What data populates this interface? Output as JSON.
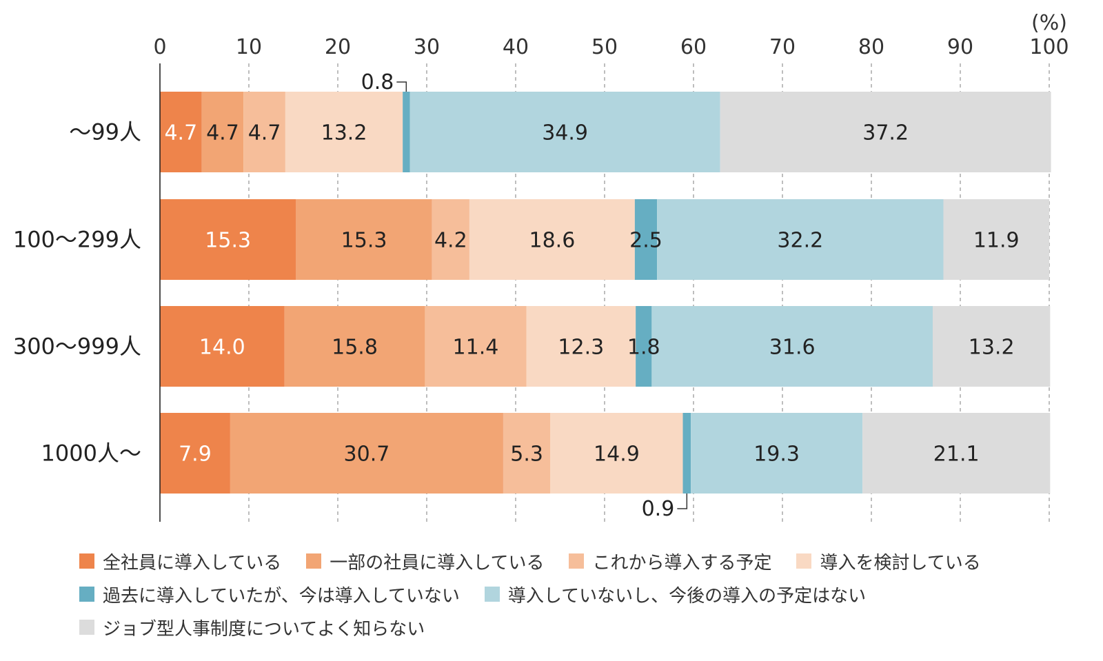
{
  "chart_data": {
    "type": "bar",
    "orientation": "horizontal",
    "stacked": true,
    "unit_label": "(%)",
    "xlim": [
      0,
      100
    ],
    "xticks": [
      "0",
      "10",
      "20",
      "30",
      "40",
      "50",
      "60",
      "70",
      "80",
      "90",
      "100"
    ],
    "grid": true,
    "legend_position": "bottom",
    "categories": [
      "〜99人",
      "100〜299人",
      "300〜999人",
      "1000人〜"
    ],
    "series": [
      {
        "name": "全社員に導入している",
        "color": "#ee844b",
        "label_color": "#ffffff",
        "values": [
          4.7,
          15.3,
          14.0,
          7.9
        ]
      },
      {
        "name": "一部の社員に導入している",
        "color": "#f2a574",
        "label_color": "#222222",
        "values": [
          4.7,
          15.3,
          15.8,
          30.7
        ]
      },
      {
        "name": "これから導入する予定",
        "color": "#f6be9a",
        "label_color": "#222222",
        "values": [
          4.7,
          4.2,
          11.4,
          5.3
        ]
      },
      {
        "name": "導入を検討している",
        "color": "#f9d9c3",
        "label_color": "#222222",
        "values": [
          13.2,
          18.6,
          12.3,
          14.9
        ]
      },
      {
        "name": "過去に導入していたが、今は導入していない",
        "color": "#66aec2",
        "label_color": "#222222",
        "values": [
          0.8,
          2.5,
          1.8,
          0.9
        ]
      },
      {
        "name": "導入していないし、今後の導入の予定はない",
        "color": "#b1d5de",
        "label_color": "#222222",
        "values": [
          34.9,
          32.2,
          31.6,
          19.3
        ]
      },
      {
        "name": "ジョブ型人事制度についてよく知らない",
        "color": "#dcdcdc",
        "label_color": "#222222",
        "values": [
          37.2,
          11.9,
          13.2,
          21.1
        ]
      }
    ],
    "callouts": [
      {
        "category_index": 0,
        "series_index": 4,
        "text": "0.8",
        "placement": "above"
      },
      {
        "category_index": 3,
        "series_index": 4,
        "text": "0.9",
        "placement": "below"
      }
    ]
  }
}
